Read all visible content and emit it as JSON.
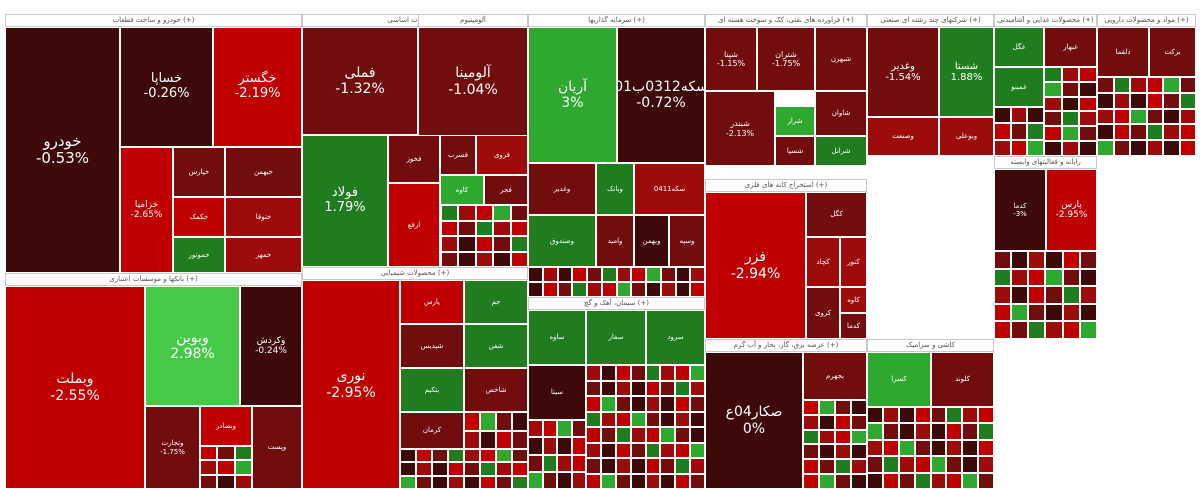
{
  "colors": {
    "strong_red": "#c00000",
    "red": "#9e0b0b",
    "dark_red": "#720d0d",
    "maroon": "#3d0909",
    "neutral": "#3d0909",
    "dark_green": "#1f7d1f",
    "green": "#2ea82e",
    "bright_green": "#46c946"
  },
  "chart_data": {
    "type": "heatmap",
    "sectors": [
      {
        "name": "خودرو و ساخت قطعات (+)",
        "tiles": [
          {
            "symbol": "خودرو",
            "change": "-0.53%"
          },
          {
            "symbol": "خساپا",
            "change": "-0.26%"
          },
          {
            "symbol": "خگستر",
            "change": "-2.19%"
          },
          {
            "symbol": "خزامیا",
            "change": "-2.65%"
          },
          {
            "symbol": "خپارس",
            "change": ""
          },
          {
            "symbol": "خبهمن",
            "change": ""
          },
          {
            "symbol": "خکمک",
            "change": ""
          },
          {
            "symbol": "ختوقا",
            "change": ""
          },
          {
            "symbol": "خموتور",
            "change": ""
          },
          {
            "symbol": "خمهر",
            "change": ""
          }
        ]
      },
      {
        "name": "فلزات اساسی (+)",
        "tiles": [
          {
            "symbol": "فملی",
            "change": "-1.32%"
          },
          {
            "symbol": "فولاد",
            "change": "1.79%"
          },
          {
            "symbol": "فخوز",
            "change": ""
          },
          {
            "symbol": "فسرب",
            "change": ""
          },
          {
            "symbol": "فروی",
            "change": ""
          },
          {
            "symbol": "کاوه",
            "change": ""
          },
          {
            "symbol": "فجر",
            "change": ""
          },
          {
            "symbol": "ارفع",
            "change": ""
          }
        ]
      },
      {
        "name": "آلومینیوم",
        "tiles": [
          {
            "symbol": "آلومینا",
            "change": "-1.04%"
          }
        ]
      },
      {
        "name": "سرمایه گذاریها (+)",
        "tiles": [
          {
            "symbol": "آریان",
            "change": "3%"
          },
          {
            "symbol": "سکه0312ب01",
            "change": "-0.72%"
          },
          {
            "symbol": "وغدیر",
            "change": ""
          },
          {
            "symbol": "وبانک",
            "change": ""
          },
          {
            "symbol": "سکه0411",
            "change": ""
          },
          {
            "symbol": "وصندوق",
            "change": ""
          },
          {
            "symbol": "وامید",
            "change": ""
          },
          {
            "symbol": "وبهمن",
            "change": ""
          },
          {
            "symbol": "وسپه",
            "change": ""
          }
        ]
      },
      {
        "name": "فراورده های نفتی، کک و سوخت هسته ای (+)",
        "tiles": [
          {
            "symbol": "شپنا",
            "change": "-1.15%"
          },
          {
            "symbol": "شتران",
            "change": "-1.75%"
          },
          {
            "symbol": "شبندر",
            "change": "-2.13%"
          },
          {
            "symbol": "شبهرن",
            "change": ""
          },
          {
            "symbol": "شراز",
            "change": ""
          },
          {
            "symbol": "شاوان",
            "change": ""
          },
          {
            "symbol": "شسپا",
            "change": ""
          },
          {
            "symbol": "شرانل",
            "change": ""
          }
        ]
      },
      {
        "name": "استخراج کانه های فلزی (+)",
        "tiles": [
          {
            "symbol": "فزر",
            "change": "-2.94%"
          },
          {
            "symbol": "کگل",
            "change": ""
          },
          {
            "symbol": "کچاد",
            "change": ""
          },
          {
            "symbol": "کنور",
            "change": ""
          },
          {
            "symbol": "کروی",
            "change": ""
          },
          {
            "symbol": "کاوه",
            "change": ""
          },
          {
            "symbol": "کدما",
            "change": ""
          }
        ]
      },
      {
        "name": "عرضه برق، گاز، بخار و آب گرم (+)",
        "tiles": [
          {
            "symbol": "صکار04ع",
            "change": "0%"
          },
          {
            "symbol": "بجهرم",
            "change": ""
          }
        ]
      },
      {
        "name": "شرکتهای چند رشته ای صنعتی (+)",
        "tiles": [
          {
            "symbol": "وغدیر",
            "change": "-1.54%"
          },
          {
            "symbol": "شستا",
            "change": "1.88%"
          },
          {
            "symbol": "وصنعت",
            "change": ""
          },
          {
            "symbol": "وبوعلی",
            "change": ""
          }
        ]
      },
      {
        "name": "محصولات غذایی و آشامیدنی (+)",
        "tiles": [
          {
            "symbol": "غگل",
            "change": ""
          },
          {
            "symbol": "غبهار",
            "change": ""
          },
          {
            "symbol": "غمینو",
            "change": ""
          }
        ]
      },
      {
        "name": "مواد و محصولات دارویی (+)",
        "tiles": [
          {
            "symbol": "دلقما",
            "change": ""
          },
          {
            "symbol": "برکت",
            "change": ""
          }
        ]
      },
      {
        "name": "بانکها و موسسات اعتباری (+)",
        "tiles": [
          {
            "symbol": "وبملت",
            "change": "-2.55%"
          },
          {
            "symbol": "وبوین",
            "change": "2.98%"
          },
          {
            "symbol": "وکردش",
            "change": "-0.24%"
          },
          {
            "symbol": "وتجارت",
            "change": "-1.75%"
          },
          {
            "symbol": "وبصادر",
            "change": ""
          },
          {
            "symbol": "وپست",
            "change": ""
          }
        ]
      },
      {
        "name": "محصولات شیمیایی (+)",
        "tiles": [
          {
            "symbol": "نوری",
            "change": "-2.95%"
          },
          {
            "symbol": "پارس",
            "change": ""
          },
          {
            "symbol": "جم",
            "change": ""
          },
          {
            "symbol": "شپدیس",
            "change": ""
          },
          {
            "symbol": "شفن",
            "change": ""
          },
          {
            "symbol": "بتکیم",
            "change": ""
          },
          {
            "symbol": "شاخص",
            "change": ""
          },
          {
            "symbol": "کرمان",
            "change": ""
          }
        ]
      },
      {
        "name": "سیمان، آهک و گچ (+)",
        "tiles": [
          {
            "symbol": "ساوه",
            "change": ""
          },
          {
            "symbol": "سفار",
            "change": ""
          },
          {
            "symbol": "سرود",
            "change": ""
          },
          {
            "symbol": "سیتا",
            "change": ""
          }
        ]
      },
      {
        "name": "کاشی و سرامیک",
        "tiles": [
          {
            "symbol": "کسرا",
            "change": ""
          },
          {
            "symbol": "کلوند",
            "change": ""
          }
        ]
      },
      {
        "name": "رایانه و فعالیتهای وابسته",
        "tiles": [
          {
            "symbol": "کدما",
            "change": "-3%"
          },
          {
            "symbol": "پارس",
            "change": "-2.95%"
          }
        ]
      }
    ]
  }
}
